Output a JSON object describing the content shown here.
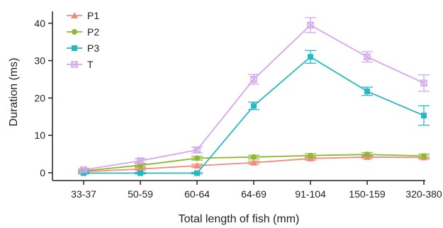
{
  "chart_data": {
    "type": "line",
    "xlabel": "Total length of fish (mm)",
    "ylabel": "Duration (ms)",
    "categories": [
      "33-37",
      "50-59",
      "60-64",
      "64-69",
      "91-104",
      "150-159",
      "320-380"
    ],
    "ylim": [
      -2,
      44
    ],
    "yticks": [
      0,
      10,
      20,
      30,
      40
    ],
    "grid": false,
    "legend_position": "top-left",
    "series": [
      {
        "name": "P1",
        "color": "#f08c7a",
        "marker": "triangle",
        "values": [
          0.3,
          1.0,
          1.9,
          2.7,
          3.8,
          4.2,
          4.1
        ],
        "errors": [
          0.2,
          0.3,
          0.4,
          0.4,
          0.4,
          0.4,
          0.4
        ]
      },
      {
        "name": "P2",
        "color": "#8db832",
        "marker": "circle",
        "values": [
          0.5,
          2.0,
          3.9,
          4.2,
          4.6,
          4.9,
          4.5
        ],
        "errors": [
          0.3,
          0.4,
          0.5,
          0.5,
          0.5,
          0.5,
          0.5
        ]
      },
      {
        "name": "P3",
        "color": "#27b9bf",
        "marker": "square",
        "values": [
          -0.1,
          -0.1,
          -0.1,
          17.9,
          31.0,
          21.8,
          15.3
        ],
        "errors": [
          0.2,
          0.2,
          0.2,
          1.0,
          1.7,
          1.1,
          2.6
        ]
      },
      {
        "name": "T",
        "color": "#d3a6ee",
        "marker": "cross-square",
        "values": [
          0.8,
          3.2,
          6.1,
          25.0,
          39.5,
          31.0,
          24.0
        ],
        "errors": [
          0.4,
          0.6,
          0.8,
          1.3,
          2.0,
          1.4,
          2.2
        ]
      }
    ]
  }
}
